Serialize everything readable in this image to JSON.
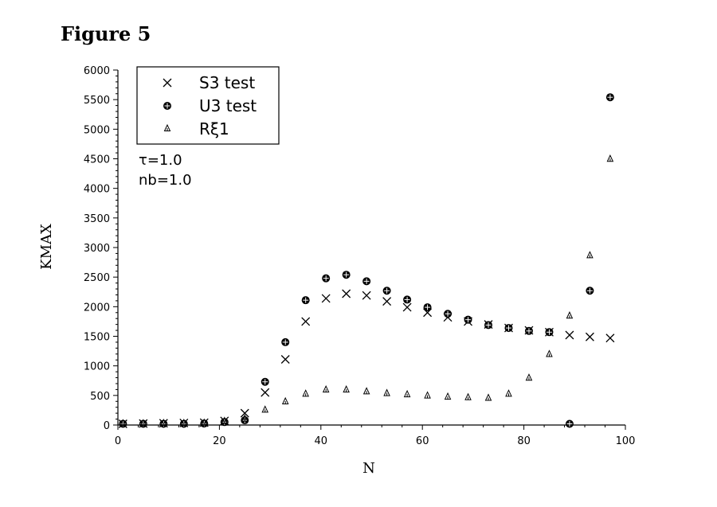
{
  "figure_label": "Figure 5",
  "chart_data": {
    "type": "scatter",
    "xlabel": "N",
    "ylabel": "KMAX",
    "xlim": [
      0,
      100
    ],
    "ylim": [
      0,
      6000
    ],
    "x_ticks": [
      0,
      20,
      40,
      60,
      80,
      100
    ],
    "y_ticks": [
      0,
      500,
      1000,
      1500,
      2000,
      2500,
      3000,
      3500,
      4000,
      4500,
      5000,
      5500,
      6000
    ],
    "grid": false,
    "legend_position": "top-left",
    "annotations": [
      "τ=1.0",
      "nb=1.0"
    ],
    "series": [
      {
        "name": "S3 test",
        "marker": "x",
        "points": [
          [
            1,
            20
          ],
          [
            5,
            25
          ],
          [
            9,
            30
          ],
          [
            13,
            35
          ],
          [
            17,
            40
          ],
          [
            21,
            70
          ],
          [
            25,
            200
          ],
          [
            29,
            550
          ],
          [
            33,
            1110
          ],
          [
            37,
            1750
          ],
          [
            41,
            2140
          ],
          [
            45,
            2220
          ],
          [
            49,
            2190
          ],
          [
            53,
            2090
          ],
          [
            57,
            1990
          ],
          [
            61,
            1900
          ],
          [
            65,
            1820
          ],
          [
            69,
            1750
          ],
          [
            73,
            1700
          ],
          [
            77,
            1640
          ],
          [
            81,
            1600
          ],
          [
            85,
            1570
          ],
          [
            89,
            1520
          ],
          [
            93,
            1490
          ],
          [
            97,
            1470
          ]
        ]
      },
      {
        "name": "U3 test",
        "marker": "circle-cross",
        "points": [
          [
            1,
            20
          ],
          [
            5,
            20
          ],
          [
            9,
            20
          ],
          [
            13,
            20
          ],
          [
            17,
            25
          ],
          [
            21,
            50
          ],
          [
            25,
            80
          ],
          [
            29,
            730
          ],
          [
            33,
            1400
          ],
          [
            37,
            2110
          ],
          [
            41,
            2480
          ],
          [
            45,
            2540
          ],
          [
            49,
            2430
          ],
          [
            53,
            2270
          ],
          [
            57,
            2120
          ],
          [
            61,
            1990
          ],
          [
            65,
            1880
          ],
          [
            69,
            1780
          ],
          [
            73,
            1690
          ],
          [
            77,
            1640
          ],
          [
            81,
            1590
          ],
          [
            85,
            1570
          ],
          [
            89,
            20
          ],
          [
            93,
            2270
          ],
          [
            97,
            5540
          ]
        ]
      },
      {
        "name": "Rξ1",
        "marker": "triangle",
        "points": [
          [
            1,
            20
          ],
          [
            5,
            20
          ],
          [
            9,
            25
          ],
          [
            13,
            25
          ],
          [
            17,
            30
          ],
          [
            21,
            60
          ],
          [
            25,
            100
          ],
          [
            29,
            250
          ],
          [
            33,
            390
          ],
          [
            37,
            520
          ],
          [
            41,
            590
          ],
          [
            45,
            590
          ],
          [
            49,
            560
          ],
          [
            53,
            530
          ],
          [
            57,
            510
          ],
          [
            61,
            490
          ],
          [
            65,
            470
          ],
          [
            69,
            460
          ],
          [
            73,
            450
          ],
          [
            77,
            520
          ],
          [
            81,
            790
          ],
          [
            85,
            1190
          ],
          [
            89,
            1840
          ],
          [
            93,
            2860
          ],
          [
            97,
            4490
          ]
        ]
      }
    ]
  }
}
